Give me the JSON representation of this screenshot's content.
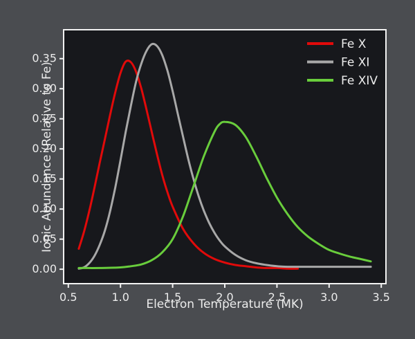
{
  "figure": {
    "outer_background": "#4a4c50",
    "plot_background": "#17181c",
    "spine_color": "#f2f2f2",
    "text_color": "#ececec",
    "tick_color": "#f2f2f2"
  },
  "chart_data": {
    "type": "line",
    "title": "",
    "xlabel": "Electron Temperature (MK)",
    "ylabel": "Ionic Abundance (Relative to Fe)",
    "xlim": [
      0.455,
      3.545
    ],
    "ylim": [
      -0.024,
      0.398
    ],
    "grid": false,
    "legend_position": "upper right",
    "xticks": [
      0.5,
      1.0,
      1.5,
      2.0,
      2.5,
      3.0,
      3.5
    ],
    "xtick_labels": [
      "0.5",
      "1.0",
      "1.5",
      "2.0",
      "2.5",
      "3.0",
      "3.5"
    ],
    "yticks": [
      0.0,
      0.05,
      0.1,
      0.15,
      0.2,
      0.25,
      0.3,
      0.35
    ],
    "ytick_labels": [
      "0.00",
      "0.05",
      "0.10",
      "0.15",
      "0.20",
      "0.25",
      "0.30",
      "0.35"
    ],
    "series": [
      {
        "name": "Fe X",
        "color": "#e10a0a",
        "peak": {
          "x": 1.05,
          "y": 0.345
        },
        "x": [
          0.6,
          0.65,
          0.7,
          0.75,
          0.8,
          0.85,
          0.9,
          0.95,
          1.0,
          1.05,
          1.1,
          1.15,
          1.2,
          1.25,
          1.3,
          1.35,
          1.4,
          1.45,
          1.5,
          1.6,
          1.7,
          1.8,
          1.9,
          2.0,
          2.1,
          2.2,
          2.3,
          2.4,
          2.5,
          2.6,
          2.7
        ],
        "y": [
          0.034,
          0.062,
          0.096,
          0.135,
          0.176,
          0.216,
          0.256,
          0.294,
          0.326,
          0.345,
          0.344,
          0.328,
          0.3,
          0.265,
          0.228,
          0.191,
          0.157,
          0.128,
          0.104,
          0.067,
          0.043,
          0.027,
          0.017,
          0.011,
          0.007,
          0.005,
          0.003,
          0.002,
          0.002,
          0.001,
          0.001
        ]
      },
      {
        "name": "Fe XI",
        "color": "#a8a8a8",
        "peak": {
          "x": 1.3,
          "y": 0.374
        },
        "x": [
          0.6,
          0.65,
          0.7,
          0.75,
          0.8,
          0.85,
          0.9,
          0.95,
          1.0,
          1.05,
          1.1,
          1.15,
          1.2,
          1.25,
          1.3,
          1.35,
          1.4,
          1.45,
          1.5,
          1.55,
          1.6,
          1.65,
          1.7,
          1.75,
          1.8,
          1.85,
          1.9,
          1.95,
          2.0,
          2.1,
          2.2,
          2.3,
          2.4,
          2.5,
          2.6,
          2.8,
          3.0,
          3.2,
          3.4
        ],
        "y": [
          0.001,
          0.003,
          0.01,
          0.022,
          0.04,
          0.064,
          0.096,
          0.136,
          0.181,
          0.228,
          0.272,
          0.312,
          0.342,
          0.363,
          0.374,
          0.371,
          0.356,
          0.33,
          0.296,
          0.258,
          0.22,
          0.183,
          0.15,
          0.121,
          0.097,
          0.077,
          0.061,
          0.048,
          0.038,
          0.024,
          0.015,
          0.01,
          0.007,
          0.005,
          0.004,
          0.004,
          0.004,
          0.004,
          0.004
        ]
      },
      {
        "name": "Fe XIV",
        "color": "#69cd3c",
        "peak": {
          "x": 2.0,
          "y": 0.245
        },
        "x": [
          0.6,
          0.8,
          1.0,
          1.1,
          1.2,
          1.3,
          1.4,
          1.5,
          1.6,
          1.7,
          1.8,
          1.9,
          1.95,
          2.0,
          2.1,
          2.2,
          2.3,
          2.4,
          2.5,
          2.6,
          2.7,
          2.8,
          2.9,
          3.0,
          3.1,
          3.2,
          3.3,
          3.4
        ],
        "y": [
          0.002,
          0.002,
          0.003,
          0.005,
          0.008,
          0.015,
          0.028,
          0.05,
          0.088,
          0.138,
          0.188,
          0.228,
          0.241,
          0.245,
          0.24,
          0.22,
          0.188,
          0.152,
          0.119,
          0.092,
          0.07,
          0.054,
          0.042,
          0.032,
          0.026,
          0.021,
          0.017,
          0.013
        ]
      }
    ]
  }
}
